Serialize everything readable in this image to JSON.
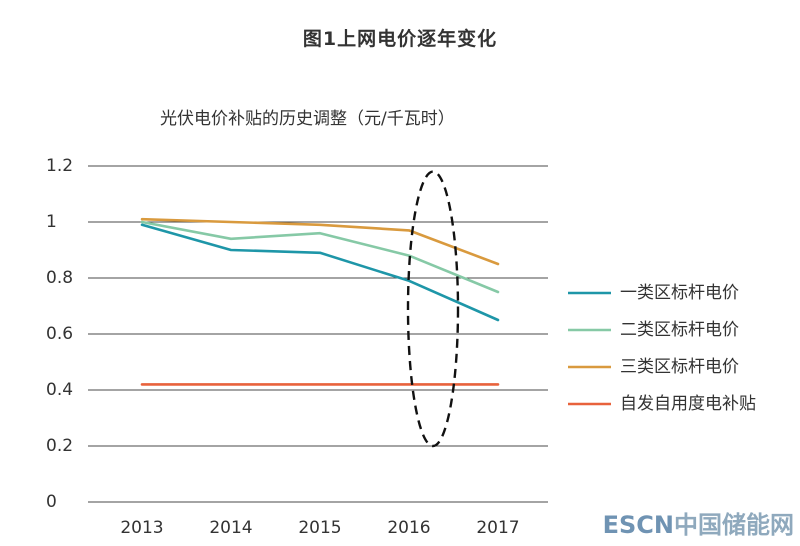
{
  "figure": {
    "title": "图1上网电价逐年变化"
  },
  "watermark": {
    "latin": "ESCN",
    "cjk": "中国储能网"
  },
  "chart_data": {
    "type": "line",
    "title": "光伏电价补贴的历史调整（元/千瓦时）",
    "xlabel": "",
    "ylabel": "",
    "categories": [
      "2013",
      "2014",
      "2015",
      "2016",
      "2017"
    ],
    "ylim": [
      0,
      1.2
    ],
    "yticks": [
      0,
      0.2,
      0.4,
      0.6,
      0.8,
      1,
      1.2
    ],
    "ytick_labels": [
      "0",
      "0.2",
      "0.4",
      "0.6",
      "0.8",
      "1",
      "1.2"
    ],
    "grid": true,
    "legend_position": "right",
    "series": [
      {
        "name": "一类区标杆电价",
        "color": "#1e96a8",
        "values": [
          0.99,
          0.9,
          0.89,
          0.79,
          0.65
        ]
      },
      {
        "name": "二类区标杆电价",
        "color": "#86c9a6",
        "values": [
          1.0,
          0.94,
          0.96,
          0.88,
          0.75
        ]
      },
      {
        "name": "三类区标杆电价",
        "color": "#d99a3e",
        "values": [
          1.01,
          1.0,
          0.99,
          0.97,
          0.85
        ]
      },
      {
        "name": "自发自用度电补贴",
        "color": "#e8623c",
        "values": [
          0.42,
          0.42,
          0.42,
          0.42,
          0.42
        ]
      }
    ],
    "annotations": [
      {
        "type": "dashed-ellipse",
        "category": "2016",
        "y_range": [
          0.2,
          1.18
        ]
      }
    ]
  }
}
